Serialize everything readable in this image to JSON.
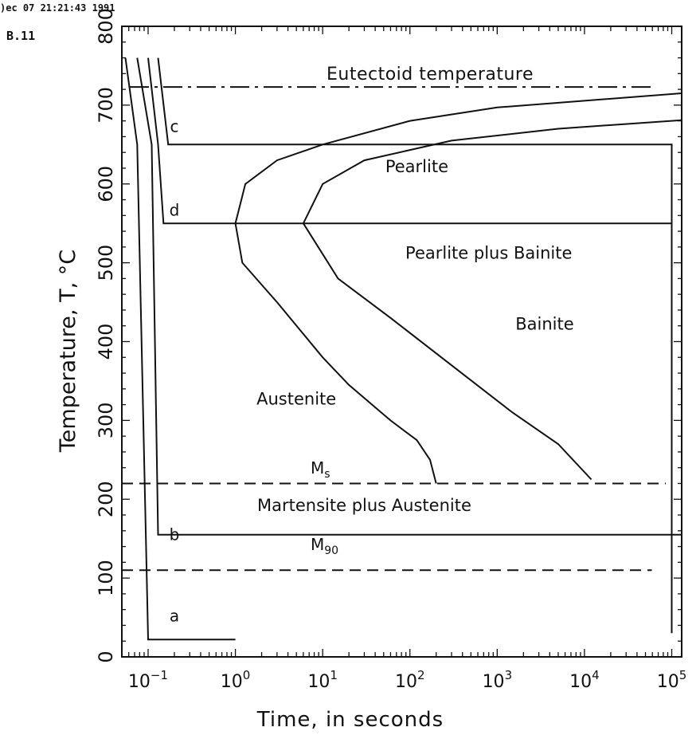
{
  "header": {
    "timestamp": ")ec 07 21:21:43 1991",
    "figure_id": "B.11"
  },
  "chart_data": {
    "type": "line",
    "xlabel": "Time, in seconds",
    "ylabel": "Temperature, T, °C",
    "xscale": "log",
    "xlim": [
      0.05,
      130000
    ],
    "ylim": [
      0,
      800
    ],
    "x_ticks": [
      {
        "base": "10",
        "exp": "−1",
        "value": 0.1
      },
      {
        "base": "10",
        "exp": "0",
        "value": 1
      },
      {
        "base": "10",
        "exp": "1",
        "value": 10
      },
      {
        "base": "10",
        "exp": "2",
        "value": 100
      },
      {
        "base": "10",
        "exp": "3",
        "value": 1000
      },
      {
        "base": "10",
        "exp": "4",
        "value": 10000
      },
      {
        "base": "10",
        "exp": "5",
        "value": 100000
      }
    ],
    "y_ticks": [
      "0",
      "100",
      "200",
      "300",
      "400",
      "500",
      "600",
      "700",
      "800"
    ],
    "reference_lines": [
      {
        "label": "Eutectoid temperature",
        "y": 723,
        "style": "dash-dot"
      },
      {
        "label": "M",
        "sub": "s",
        "y": 220,
        "style": "dashed"
      },
      {
        "label": "M",
        "sub": "90",
        "y": 110,
        "style": "dashed"
      }
    ],
    "curves": [
      {
        "id": "start",
        "points": [
          [
            200,
            220
          ],
          [
            170,
            250
          ],
          [
            120,
            275
          ],
          [
            60,
            300
          ],
          [
            20,
            345
          ],
          [
            10,
            380
          ],
          [
            3,
            450
          ],
          [
            1.2,
            500
          ],
          [
            1,
            550
          ],
          [
            1.3,
            600
          ],
          [
            3,
            630
          ],
          [
            10,
            650
          ],
          [
            100,
            680
          ],
          [
            1000,
            697
          ],
          [
            130000,
            715
          ]
        ]
      },
      {
        "id": "finish",
        "points": [
          [
            12000,
            225
          ],
          [
            5000,
            270
          ],
          [
            1500,
            310
          ],
          [
            300,
            370
          ],
          [
            60,
            430
          ],
          [
            15,
            480
          ],
          [
            6,
            550
          ],
          [
            10,
            600
          ],
          [
            30,
            630
          ],
          [
            300,
            655
          ],
          [
            5000,
            670
          ],
          [
            130000,
            681
          ]
        ]
      }
    ],
    "cooling_paths": [
      {
        "label": "a",
        "points": [
          [
            0.055,
            760
          ],
          [
            0.075,
            650
          ],
          [
            0.1,
            22
          ],
          [
            1,
            22
          ]
        ]
      },
      {
        "label": "b",
        "points": [
          [
            0.075,
            760
          ],
          [
            0.11,
            650
          ],
          [
            0.13,
            155
          ],
          [
            130000,
            155
          ]
        ]
      },
      {
        "label": "c",
        "points": [
          [
            0.13,
            760
          ],
          [
            0.17,
            650
          ],
          [
            0.18,
            650
          ],
          [
            100000,
            650
          ],
          [
            100000,
            30
          ]
        ]
      },
      {
        "label": "d",
        "points": [
          [
            0.1,
            760
          ],
          [
            0.13,
            650
          ],
          [
            0.15,
            550
          ],
          [
            100000,
            550
          ]
        ]
      }
    ],
    "annotations": [
      {
        "text": "Pearlite",
        "x": 120,
        "y": 615
      },
      {
        "text": "Pearlite plus Bainite",
        "x": 800,
        "y": 505
      },
      {
        "text": "Bainite",
        "x": 3500,
        "y": 415
      },
      {
        "text": "Austenite",
        "x": 5,
        "y": 320
      },
      {
        "text": "Martensite plus Austenite",
        "x": 30,
        "y": 185
      }
    ]
  }
}
